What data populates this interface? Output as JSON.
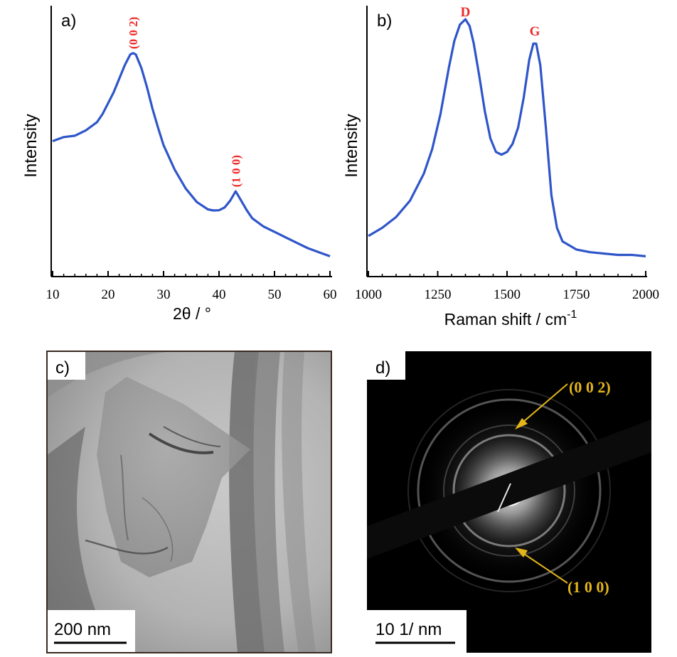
{
  "colors": {
    "curve": "#2f55c9",
    "peak_label": "#ee2b2b",
    "saed_label": "#e3b51a",
    "axis": "#000000"
  },
  "panels": {
    "a": {
      "label": "a)"
    },
    "b": {
      "label": "b)"
    },
    "c": {
      "label": "c)",
      "scale_bar": "200 nm"
    },
    "d": {
      "label": "d)",
      "scale_bar": "10 1/ nm",
      "ring_labels": [
        "(0 0 2)",
        "(1 0 0)"
      ]
    }
  },
  "chart_data": [
    {
      "panel": "a",
      "type": "line",
      "xlabel": "2θ / °",
      "ylabel": "Intensity",
      "xlim": [
        10,
        60
      ],
      "ylim": [
        0,
        100
      ],
      "xticks": [
        10,
        20,
        30,
        40,
        50,
        60
      ],
      "y_ticks_shown": false,
      "annotations": [
        {
          "text": "(0 0 2)",
          "x": 24.5,
          "y": 84
        },
        {
          "text": "(1 0 0)",
          "x": 43,
          "y": 33
        }
      ],
      "series": [
        {
          "x": [
            10,
            12,
            14,
            16,
            18,
            19,
            20,
            21,
            22,
            23,
            24,
            24.5,
            25,
            26,
            27,
            28,
            29,
            30,
            32,
            34,
            36,
            38,
            39,
            40,
            41,
            42,
            43,
            44,
            45,
            46,
            48,
            50,
            52,
            54,
            56,
            58,
            60
          ],
          "y": [
            50,
            51.5,
            52,
            54,
            57,
            60,
            64,
            68,
            73,
            78,
            82,
            82.5,
            82,
            77,
            70,
            62,
            55,
            48.5,
            39.5,
            32.5,
            27.5,
            24.8,
            24.4,
            24.5,
            25.5,
            28,
            31.5,
            28,
            24.5,
            21.5,
            18.5,
            16.5,
            14.5,
            12.5,
            10.5,
            9,
            7.5
          ]
        }
      ]
    },
    {
      "panel": "b",
      "type": "line",
      "xlabel": "Raman shift / cm-1",
      "ylabel": "Intensity",
      "xlim": [
        1000,
        2000
      ],
      "ylim": [
        0,
        100
      ],
      "xticks": [
        1000,
        1250,
        1500,
        1750,
        2000
      ],
      "y_ticks_shown": false,
      "annotations": [
        {
          "text": "D",
          "x": 1350,
          "y": 96
        },
        {
          "text": "G",
          "x": 1600,
          "y": 89
        }
      ],
      "series": [
        {
          "x": [
            1000,
            1050,
            1100,
            1150,
            1200,
            1230,
            1260,
            1290,
            1310,
            1330,
            1350,
            1365,
            1380,
            1400,
            1420,
            1440,
            1460,
            1480,
            1500,
            1520,
            1540,
            1560,
            1580,
            1595,
            1605,
            1620,
            1640,
            1660,
            1680,
            1700,
            1750,
            1800,
            1850,
            1900,
            1950,
            2000
          ],
          "y": [
            15,
            18,
            22,
            28,
            38,
            47,
            60,
            77,
            87,
            93,
            95,
            92.5,
            86,
            74,
            61,
            51,
            46,
            45,
            46,
            49,
            55,
            66,
            80,
            86,
            86,
            78,
            55,
            30,
            18,
            13,
            10,
            9,
            8.5,
            8,
            8,
            7.5
          ]
        }
      ]
    }
  ]
}
